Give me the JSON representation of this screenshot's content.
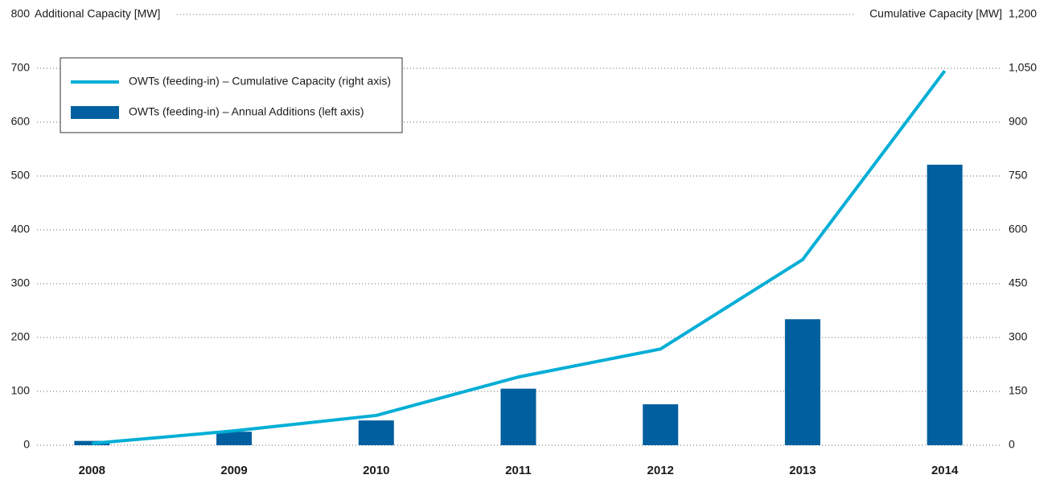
{
  "chart_data": {
    "type": "bar",
    "ylabel": "Additional Capacity [MW]",
    "y2label": "Cumulative Capacity [MW]",
    "categories": [
      "2008",
      "2009",
      "2010",
      "2011",
      "2012",
      "2013",
      "2014"
    ],
    "series": [
      {
        "name": "OWTs (feeding-in) – Cumulative Capacity (right axis)",
        "type": "line",
        "axis": "y2",
        "color": "#00aed6",
        "values": [
          5,
          40,
          83,
          190,
          268,
          517,
          1043
        ]
      },
      {
        "name": "OWTs (feeding-in) – Annual Additions (left axis)",
        "type": "bar",
        "color": "#005f9e",
        "values": [
          8,
          25,
          46,
          105,
          76,
          234,
          521
        ]
      }
    ],
    "ylim": [
      0,
      800
    ],
    "yticks": [
      0,
      100,
      200,
      300,
      400,
      500,
      600,
      700,
      800
    ],
    "y2lim": [
      0,
      1200
    ],
    "y2ticks": [
      0,
      150,
      300,
      450,
      600,
      750,
      900,
      {
        "value": 1050,
        "label": "1,050"
      },
      {
        "value": 1200,
        "label": "1,200"
      }
    ],
    "grid": true,
    "legend": "upper left"
  }
}
